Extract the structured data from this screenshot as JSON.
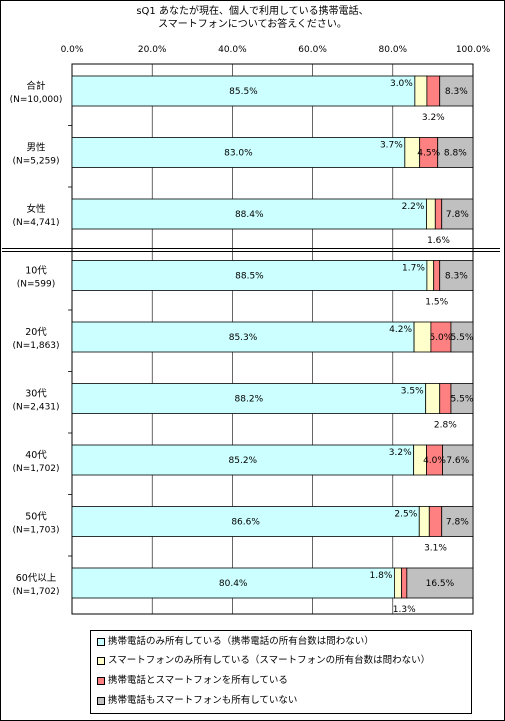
{
  "chart_data": {
    "type": "bar",
    "orientation": "horizontal",
    "stacked": true,
    "title_lines": [
      "sQ1 あなたが現在、個人で利用している携帯電話、",
      "スマートフォンについてお答えください。"
    ],
    "x_ticks": [
      "0.0%",
      "20.0%",
      "40.0%",
      "60.0%",
      "80.0%",
      "100.0%"
    ],
    "xlim": [
      0,
      100
    ],
    "grid": true,
    "legend_position": "bottom",
    "categories": [
      {
        "label": "合計",
        "n": "(N=10,000)"
      },
      {
        "label": "男性",
        "n": "(N=5,259)"
      },
      {
        "label": "女性",
        "n": "(N=4,741)"
      },
      {
        "label": "10代",
        "n": "(N=599)"
      },
      {
        "label": "20代",
        "n": "(N=1,863)"
      },
      {
        "label": "30代",
        "n": "(N=2,431)"
      },
      {
        "label": "40代",
        "n": "(N=1,702)"
      },
      {
        "label": "50代",
        "n": "(N=1,703)"
      },
      {
        "label": "60代以上",
        "n": "(N=1,702)"
      }
    ],
    "series": [
      {
        "name": "携帯電話のみ所有している（携帯電話の所有台数は問わない）",
        "color": "#CCFFFF",
        "values": [
          85.5,
          83.0,
          88.4,
          88.5,
          85.3,
          88.2,
          85.2,
          86.6,
          80.4
        ],
        "labels": [
          "85.5%",
          "83.0%",
          "88.4%",
          "88.5%",
          "85.3%",
          "88.2%",
          "85.2%",
          "86.6%",
          "80.4%"
        ]
      },
      {
        "name": "スマートフォンのみ所有している（スマートフォンの所有台数は問わない）",
        "color": "#FFFFCC",
        "values": [
          3.0,
          3.7,
          2.2,
          1.7,
          4.2,
          3.5,
          3.2,
          2.5,
          1.8
        ],
        "labels": [
          "3.0%",
          "3.7%",
          "2.2%",
          "1.7%",
          "4.2%",
          "3.5%",
          "3.2%",
          "2.5%",
          "1.8%"
        ]
      },
      {
        "name": "携帯電話とスマートフォンを所有している",
        "color": "#FF8080",
        "values": [
          3.2,
          4.5,
          1.6,
          1.5,
          5.0,
          2.8,
          4.0,
          3.1,
          1.3
        ],
        "labels": [
          "3.2%",
          "4.5%",
          "1.6%",
          "1.5%",
          "5.0%",
          "2.8%",
          "4.0%",
          "3.1%",
          "1.3%"
        ]
      },
      {
        "name": "携帯電話もスマートフォンも所有していない",
        "color": "#C0C0C0",
        "values": [
          8.3,
          8.8,
          7.8,
          8.3,
          5.5,
          5.5,
          7.6,
          7.8,
          16.5
        ],
        "labels": [
          "8.3%",
          "8.8%",
          "7.8%",
          "8.3%",
          "5.5%",
          "5.5%",
          "7.6%",
          "7.8%",
          "16.5%"
        ]
      }
    ]
  }
}
